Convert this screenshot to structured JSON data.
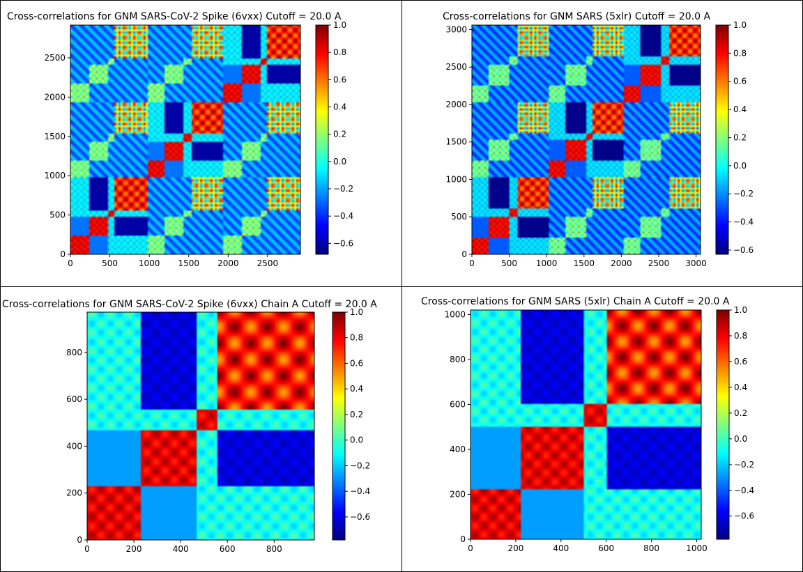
{
  "colorbar": {
    "colors": [
      "#00007f",
      "#0000ff",
      "#007fff",
      "#00ffff",
      "#7fff7f",
      "#ffff00",
      "#ff7f00",
      "#ff0000",
      "#7f0000"
    ],
    "cmap": "jet"
  },
  "chart_data": [
    {
      "type": "heatmap",
      "title": "Cross-correlations for GNM SARS-CoV-2 Spike (6vxx) Cutoff = 20.0 A",
      "xlim": [
        0,
        2916
      ],
      "ylim": [
        0,
        2916
      ],
      "xticks": [
        "0",
        "500",
        "1000",
        "1500",
        "2000",
        "2500"
      ],
      "yticks": [
        "0",
        "500",
        "1000",
        "1500",
        "2000",
        "2500"
      ],
      "colorbar": {
        "min": -0.68,
        "max": 1.0,
        "ticks": [
          "1.0",
          "0.8",
          "0.6",
          "0.4",
          "0.2",
          "0.0",
          "−0.2",
          "−0.4",
          "−0.6"
        ]
      },
      "domains": [
        0,
        230,
        470,
        530,
        560,
        972,
        1202,
        1442,
        1502,
        1532,
        1944,
        2174,
        2414,
        2474,
        2504,
        2916
      ],
      "pattern": "3 chains of ~972 residues each; strong positive blocks on the diagonal, negative correlation between N-terminal and C-terminal domains"
    },
    {
      "type": "heatmap",
      "title": "Cross-correlations for GNM SARS (5xlr) Cutoff = 20.0 A",
      "xlim": [
        0,
        3060
      ],
      "ylim": [
        0,
        3060
      ],
      "xticks": [
        "0",
        "500",
        "1000",
        "1500",
        "2000",
        "2500",
        "3000"
      ],
      "yticks": [
        "0",
        "500",
        "1000",
        "1500",
        "2000",
        "2500",
        "3000"
      ],
      "colorbar": {
        "min": -0.63,
        "max": 1.0,
        "ticks": [
          "1.0",
          "0.8",
          "0.6",
          "0.4",
          "0.2",
          "0.0",
          "−0.2",
          "−0.4",
          "−0.6"
        ]
      },
      "domains": [
        0,
        225,
        500,
        540,
        600,
        1020,
        1245,
        1520,
        1560,
        1620,
        2040,
        2265,
        2540,
        2580,
        2640,
        3060
      ],
      "pattern": "3 chains of ~1020 residues each; strong positive blocks on the diagonal, negative correlation between N-terminal and C-terminal domains"
    },
    {
      "type": "heatmap",
      "title": "Cross-correlations for GNM SARS-CoV-2 Spike (6vxx) Chain A Cutoff = 20.0 A",
      "xlim": [
        0,
        972
      ],
      "ylim": [
        0,
        972
      ],
      "xticks": [
        "0",
        "200",
        "400",
        "600",
        "800"
      ],
      "yticks": [
        "0",
        "200",
        "400",
        "600",
        "800"
      ],
      "colorbar": {
        "min": -0.78,
        "max": 1.0,
        "ticks": [
          "1.0",
          "0.8",
          "0.6",
          "0.4",
          "0.2",
          "0.0",
          "−0.2",
          "−0.4",
          "−0.6"
        ]
      },
      "domains": [
        0,
        230,
        470,
        530,
        560,
        972
      ],
      "pattern": "Single chain; positive blocks 0–230, 230–470, 470–560, 560–972; negative correlation between 230–470 and 560–972"
    },
    {
      "type": "heatmap",
      "title": "Cross-correlations for GNM SARS (5xlr) Chain A Cutoff = 20.0 A",
      "xlim": [
        0,
        1020
      ],
      "ylim": [
        0,
        1020
      ],
      "xticks": [
        "0",
        "200",
        "400",
        "600",
        "800",
        "1000"
      ],
      "yticks": [
        "0",
        "200",
        "400",
        "600",
        "800",
        "1000"
      ],
      "colorbar": {
        "min": -0.78,
        "max": 1.0,
        "ticks": [
          "1.0",
          "0.8",
          "0.6",
          "0.4",
          "0.2",
          "0.0",
          "−0.2",
          "−0.4",
          "−0.6"
        ]
      },
      "domains": [
        0,
        225,
        500,
        540,
        600,
        1020
      ],
      "pattern": "Single chain; positive blocks 0–225, 225–500, 500–600, 600–1020; negative correlation between 225–500 and 600–1020"
    }
  ]
}
